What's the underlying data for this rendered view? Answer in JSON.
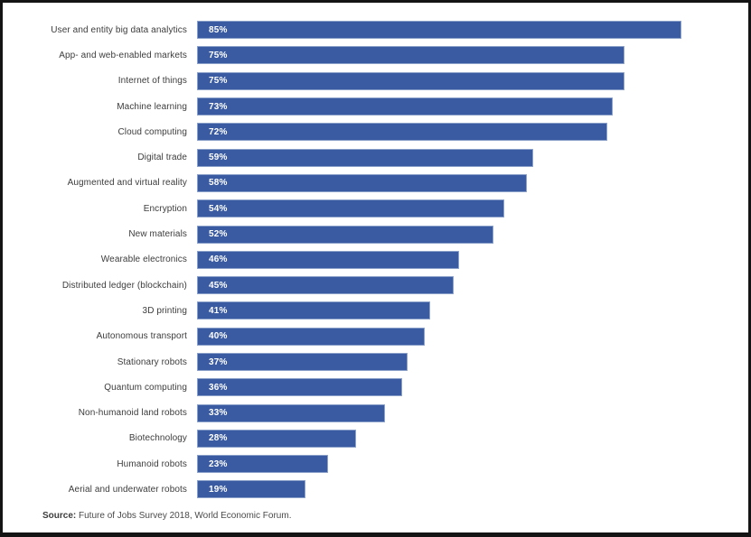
{
  "chart_data": {
    "type": "bar",
    "orientation": "horizontal",
    "title": "",
    "xlabel": "",
    "ylabel": "",
    "xlim": [
      0,
      100
    ],
    "grid": false,
    "legend": null,
    "bar_color": "#3a5ba1",
    "value_label_color": "#ffffff",
    "categories": [
      "User and entity big data analytics",
      "App- and web-enabled markets",
      "Internet of things",
      "Machine learning",
      "Cloud computing",
      "Digital trade",
      "Augmented and virtual reality",
      "Encryption",
      "New materials",
      "Wearable electronics",
      "Distributed ledger (blockchain)",
      "3D printing",
      "Autonomous transport",
      "Stationary robots",
      "Quantum computing",
      "Non-humanoid land robots",
      "Biotechnology",
      "Humanoid robots",
      "Aerial and underwater robots"
    ],
    "values": [
      85,
      75,
      75,
      73,
      72,
      59,
      58,
      54,
      52,
      46,
      45,
      41,
      40,
      37,
      36,
      33,
      28,
      23,
      19
    ],
    "value_labels": [
      "85%",
      "75%",
      "75%",
      "73%",
      "72%",
      "59%",
      "58%",
      "54%",
      "52%",
      "46%",
      "45%",
      "41%",
      "40%",
      "37%",
      "36%",
      "33%",
      "28%",
      "23%",
      "19%"
    ]
  },
  "source": {
    "label": "Source:",
    "text": " Future of Jobs Survey 2018, World Economic Forum."
  }
}
